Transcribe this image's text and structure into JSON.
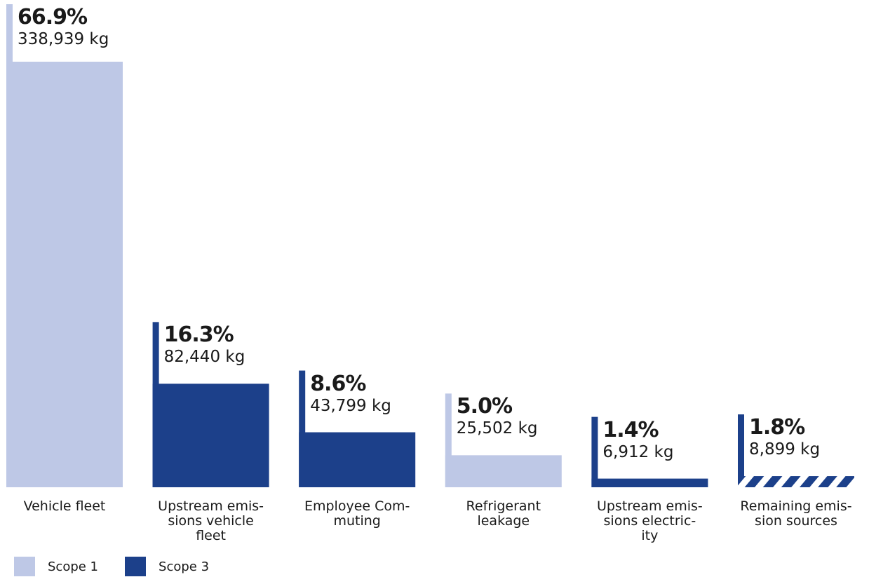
{
  "chart_data": {
    "type": "bar",
    "unit": "kg",
    "colors": {
      "Scope 1": "#bec8e6",
      "Scope 3": "#1c408a"
    },
    "bars": [
      {
        "label_lines": [
          "Vehicle fleet"
        ],
        "percent": "66.9%",
        "value_text": "338,939 kg",
        "value": 338939,
        "scope": "Scope 1",
        "hatched": false
      },
      {
        "label_lines": [
          "Upstream emis-",
          "sions vehicle",
          "fleet"
        ],
        "percent": "16.3%",
        "value_text": "82,440 kg",
        "value": 82440,
        "scope": "Scope 3",
        "hatched": false
      },
      {
        "label_lines": [
          "Employee Com-",
          "muting"
        ],
        "percent": "8.6%",
        "value_text": "43,799 kg",
        "value": 43799,
        "scope": "Scope 3",
        "hatched": false
      },
      {
        "label_lines": [
          "Refrigerant",
          "leakage"
        ],
        "percent": "5.0%",
        "value_text": "25,502 kg",
        "value": 25502,
        "scope": "Scope 1",
        "hatched": false
      },
      {
        "label_lines": [
          "Upstream emis-",
          "sions electric-",
          "ity"
        ],
        "percent": "1.4%",
        "value_text": "6,912 kg",
        "value": 6912,
        "scope": "Scope 3",
        "hatched": false
      },
      {
        "label_lines": [
          "Remaining emis-",
          "sion sources"
        ],
        "percent": "1.8%",
        "value_text": "8,899 kg",
        "value": 8899,
        "scope": "Scope 3",
        "hatched": true
      }
    ],
    "legend": [
      {
        "name": "Scope 1",
        "color": "#bec8e6"
      },
      {
        "name": "Scope 3",
        "color": "#1c408a"
      }
    ],
    "legend_position": "bottom-left",
    "grid": false
  }
}
